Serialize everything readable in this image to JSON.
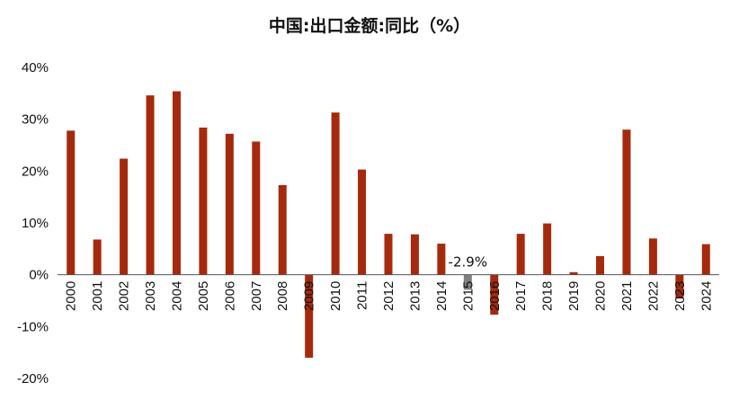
{
  "chart_data": {
    "type": "bar",
    "title": "中国:出口金额:同比（%）",
    "xlabel": "",
    "ylabel": "",
    "ylim": [
      -20,
      40
    ],
    "yticks": [
      -20,
      -10,
      0,
      10,
      20,
      30,
      40
    ],
    "ytick_labels": [
      "-20%",
      "-10%",
      "0%",
      "10%",
      "20%",
      "30%",
      "40%"
    ],
    "grid": false,
    "categories": [
      "2000",
      "2001",
      "2002",
      "2003",
      "2004",
      "2005",
      "2006",
      "2007",
      "2008",
      "2009",
      "2010",
      "2011",
      "2012",
      "2013",
      "2014",
      "2015",
      "2016",
      "2017",
      "2018",
      "2019",
      "2020",
      "2021",
      "2022",
      "2023",
      "2024"
    ],
    "values": [
      27.8,
      6.8,
      22.4,
      34.6,
      35.4,
      28.4,
      27.2,
      25.7,
      17.3,
      -16.0,
      31.3,
      20.3,
      7.9,
      7.8,
      6.0,
      -2.9,
      -7.7,
      7.9,
      9.9,
      0.5,
      3.6,
      28.0,
      7.0,
      -4.6,
      5.9
    ],
    "highlight_index": 15,
    "data_labels": [
      {
        "index": 15,
        "text": "-2.9%"
      }
    ],
    "colors": {
      "bar": "#a52a0d",
      "highlight": "#7f7f7f",
      "axis": "#555555"
    }
  }
}
